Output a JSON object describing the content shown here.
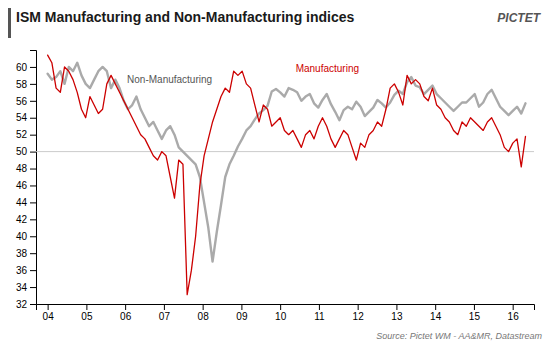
{
  "chart_data": {
    "type": "line",
    "title": "ISM Manufacturing and Non-Manufacturing indices",
    "source": "Source: Pictet WM - AA&MR, Datastream",
    "x": [
      4.0,
      4.1091,
      4.2182,
      4.3273,
      4.4365,
      4.5456,
      4.6547,
      4.7638,
      4.8729,
      4.982,
      5.0912,
      5.2003,
      5.3094,
      5.4185,
      5.5276,
      5.6367,
      5.7458,
      5.855,
      5.9641,
      6.0732,
      6.1823,
      6.2914,
      6.4005,
      6.5096,
      6.6188,
      6.7279,
      6.837,
      6.9461,
      7.0552,
      7.1643,
      7.2735,
      7.3826,
      7.4917,
      7.6008,
      7.7099,
      7.819,
      7.9281,
      8.0373,
      8.1464,
      8.2555,
      8.3646,
      8.4737,
      8.5828,
      8.6919,
      8.8011,
      8.9102,
      9.0193,
      9.1284,
      9.2375,
      9.3466,
      9.4558,
      9.5649,
      9.674,
      9.7831,
      9.8922,
      10.0013,
      10.1104,
      10.2196,
      10.3287,
      10.4378,
      10.5469,
      10.656,
      10.7651,
      10.8742,
      10.9834,
      11.0925,
      11.2016,
      11.3107,
      11.4198,
      11.5289,
      11.6381,
      11.7472,
      11.8563,
      11.9654,
      12.0745,
      12.1836,
      12.2927,
      12.4019,
      12.511,
      12.6201,
      12.7292,
      12.8383,
      12.9474,
      13.0565,
      13.1657,
      13.2748,
      13.3839,
      13.493,
      13.6021,
      13.7112,
      13.8204,
      13.9295,
      14.0386,
      14.1477,
      14.2568,
      14.3659,
      14.475,
      14.5842,
      14.6933,
      14.8024,
      14.9115,
      15.0206,
      15.1297,
      15.2388,
      15.348,
      15.4571,
      15.5662,
      15.6753,
      15.7844,
      15.8935,
      16.0027,
      16.1118,
      16.2209,
      16.33
    ],
    "series": [
      {
        "color": "#aaaaaa",
        "values": [
          59.2,
          58.5,
          58.8,
          59.5,
          58.0,
          60.0,
          59.5,
          60.5,
          59.0,
          58.0,
          57.5,
          58.5,
          59.5,
          60.0,
          59.5,
          57.5,
          58.5,
          57.5,
          56.0,
          55.0,
          55.5,
          56.5,
          55.0,
          54.0,
          53.0,
          53.5,
          52.5,
          51.5,
          52.5,
          53.0,
          52.0,
          50.5,
          50.0,
          49.5,
          49.0,
          48.5,
          47.0,
          44.0,
          41.0,
          37.0,
          40.5,
          43.7,
          47.0,
          48.5,
          49.5,
          50.6,
          51.5,
          52.5,
          53.0,
          53.8,
          54.5,
          54.9,
          55.4,
          57.1,
          57.4,
          57.0,
          56.5,
          57.5,
          57.3,
          57.0,
          56.0,
          56.5,
          56.8,
          55.7,
          55.2,
          56.1,
          56.8,
          55.6,
          54.7,
          53.7,
          54.9,
          55.3,
          55.0,
          55.9,
          55.3,
          54.2,
          54.7,
          55.2,
          56.1,
          55.7,
          55.2,
          55.8,
          56.7,
          57.2,
          56.8,
          58.2,
          58.8,
          57.8,
          57.6,
          56.8,
          57.3,
          57.8,
          56.8,
          56.3,
          55.8,
          55.3,
          54.8,
          55.3,
          55.8,
          55.8,
          56.3,
          56.8,
          55.3,
          55.8,
          56.8,
          57.3,
          56.3,
          55.3,
          54.8,
          54.3,
          54.8,
          55.3,
          54.5,
          55.7
        ]
      },
      {
        "color": "#cc0000",
        "values": [
          61.4,
          60.5,
          57.5,
          57.0,
          60.0,
          59.5,
          58.5,
          57.0,
          55.0,
          54.0,
          56.5,
          55.5,
          54.5,
          55.0,
          58.0,
          59.0,
          58.0,
          57.0,
          56.0,
          55.0,
          54.0,
          53.0,
          52.0,
          51.5,
          50.5,
          49.5,
          49.0,
          50.0,
          49.5,
          47.0,
          44.5,
          49.0,
          48.5,
          33.1,
          36.0,
          40.0,
          46.0,
          49.5,
          51.5,
          53.5,
          55.0,
          56.5,
          57.5,
          57.0,
          59.5,
          59.0,
          59.5,
          58.0,
          57.5,
          55.5,
          53.5,
          55.5,
          55.0,
          53.0,
          53.5,
          54.0,
          52.5,
          52.0,
          52.5,
          51.5,
          50.5,
          52.0,
          52.5,
          51.5,
          53.0,
          54.0,
          53.0,
          51.5,
          50.5,
          51.5,
          52.5,
          52.0,
          50.5,
          49.0,
          51.0,
          50.5,
          52.0,
          52.5,
          53.5,
          53.0,
          55.0,
          57.5,
          58.0,
          57.0,
          55.5,
          59.0,
          58.0,
          58.5,
          58.0,
          56.5,
          56.0,
          57.5,
          55.5,
          55.0,
          54.0,
          53.5,
          52.5,
          52.0,
          53.5,
          53.0,
          54.0,
          53.5,
          53.0,
          52.5,
          53.5,
          54.0,
          53.0,
          52.0,
          50.5,
          50.0,
          51.0,
          51.5,
          48.2,
          51.8
        ]
      }
    ],
    "hline": 50,
    "annotations": [
      {
        "text": "Non-Manufacturing",
        "x": 6.05,
        "y": 58.5,
        "color": "#555555"
      },
      {
        "text": "Manufacturing",
        "x": 10.4,
        "y": 59.8,
        "color": "#cc0000"
      },
      {
        "text": "PICTET"
      }
    ],
    "xlim": [
      3.7,
      16.55
    ],
    "xticks": [
      {
        "value": 4,
        "label": "04"
      },
      {
        "value": 5,
        "label": "05"
      },
      {
        "value": 6,
        "label": "06"
      },
      {
        "value": 7,
        "label": "07"
      },
      {
        "value": 8,
        "label": "08"
      },
      {
        "value": 9,
        "label": "09"
      },
      10,
      11,
      12,
      13,
      14,
      15,
      16
    ],
    "ylim": [
      32,
      62
    ],
    "yticks": [
      32,
      34,
      36,
      38,
      40,
      42,
      44,
      46,
      48,
      50,
      52,
      54,
      56,
      58,
      60
    ],
    "grid": false
  }
}
